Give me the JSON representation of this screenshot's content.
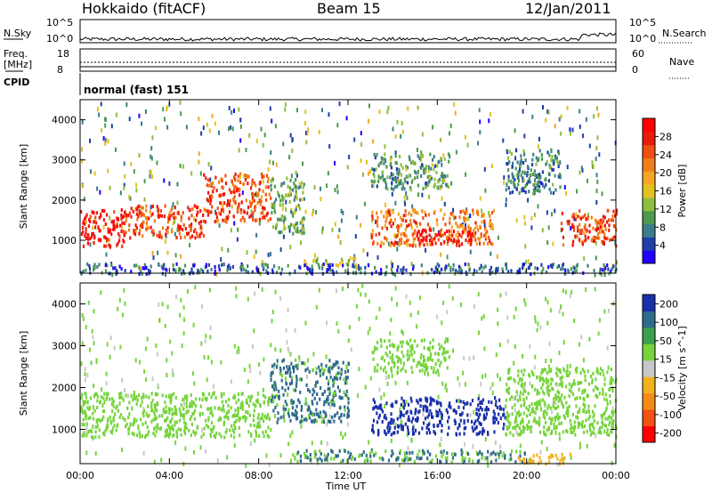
{
  "header": {
    "station": "Hokkaido (fitACF)",
    "beam": "Beam 15",
    "date": "12/Jan/2011"
  },
  "noise_panel": {
    "left_label": "N.Sky",
    "right_label": "N.Search",
    "left_ticks": [
      "10^5",
      "10^0"
    ],
    "right_ticks": [
      "10^5",
      "10^0"
    ]
  },
  "freq_panel": {
    "left_label_1": "Freq.",
    "left_label_2": "[MHz]",
    "left_ticks": [
      "18",
      "8"
    ],
    "right_label": "Nave",
    "right_ticks": [
      "60",
      "0"
    ]
  },
  "cpid_panel": {
    "label": "CPID",
    "mode_text": "normal (fast) 151"
  },
  "x_axis": {
    "label": "Time UT",
    "tick_labels": [
      "00:00",
      "04:00",
      "08:00",
      "12:00",
      "16:00",
      "20:00",
      "00:00"
    ]
  },
  "chart_data": [
    {
      "type": "heatmap",
      "quantity": "Power",
      "ylabel": "Slant Range [km]",
      "y_tick_labels": [
        "1000",
        "2000",
        "3000",
        "4000"
      ],
      "ylim": [
        180,
        4500
      ],
      "x_range_hours": [
        0,
        24
      ],
      "colorbar": {
        "label": "Power [dB]",
        "tick_labels": [
          "4",
          "8",
          "12",
          "16",
          "20",
          "24",
          "28"
        ],
        "colors": [
          "#2200ff",
          "#1f3fa8",
          "#3c7d8c",
          "#4c9a4c",
          "#8cbf3c",
          "#e2c21e",
          "#f5a623",
          "#f07f1a",
          "#f04e12",
          "#e81b0c",
          "#ff0000"
        ]
      },
      "regions": [
        {
          "t0": 0.0,
          "t1": 2.0,
          "r0": 850,
          "r1": 1800,
          "level": 28
        },
        {
          "t0": 2.0,
          "t1": 5.5,
          "r0": 1100,
          "r1": 1900,
          "level": 25
        },
        {
          "t0": 5.5,
          "t1": 8.5,
          "r0": 1500,
          "r1": 2700,
          "level": 24
        },
        {
          "t0": 8.5,
          "t1": 10.0,
          "r0": 1200,
          "r1": 2600,
          "level": 12
        },
        {
          "t0": 10.0,
          "t1": 12.5,
          "r0": 400,
          "r1": 600,
          "level": 14
        },
        {
          "t0": 13.0,
          "t1": 18.5,
          "r0": 900,
          "r1": 1800,
          "level": 22
        },
        {
          "t0": 15.0,
          "t1": 17.5,
          "r0": 900,
          "r1": 1300,
          "level": 29
        },
        {
          "t0": 13.0,
          "t1": 16.5,
          "r0": 2300,
          "r1": 3200,
          "level": 11
        },
        {
          "t0": 19.0,
          "t1": 21.5,
          "r0": 2200,
          "r1": 3300,
          "level": 9
        },
        {
          "t0": 21.5,
          "t1": 24.0,
          "r0": 900,
          "r1": 1800,
          "level": 24
        },
        {
          "t0": 0.0,
          "t1": 24.0,
          "r0": 200,
          "r1": 450,
          "level": 7
        }
      ]
    },
    {
      "type": "heatmap",
      "quantity": "Velocity",
      "ylabel": "Slant Range [km]",
      "y_tick_labels": [
        "1000",
        "2000",
        "3000",
        "4000"
      ],
      "ylim": [
        180,
        4500
      ],
      "x_range_hours": [
        0,
        24
      ],
      "colorbar": {
        "label": "Velocity [m s^-1]",
        "tick_labels": [
          "200",
          "100",
          "50",
          "15",
          "-15",
          "-50",
          "-100",
          "-200"
        ],
        "colors": [
          "#1a2faa",
          "#2f6b8c",
          "#3da04c",
          "#76d43c",
          "#c8c8c8",
          "#f2b21e",
          "#f58a12",
          "#f25212",
          "#ff0000"
        ]
      },
      "regions": [
        {
          "t0": 0.0,
          "t1": 8.5,
          "r0": 850,
          "r1": 1900,
          "level": 0
        },
        {
          "t0": 8.5,
          "t1": 12.0,
          "r0": 1200,
          "r1": 2700,
          "level": 60
        },
        {
          "t0": 13.0,
          "t1": 19.0,
          "r0": 900,
          "r1": 1800,
          "level": 130
        },
        {
          "t0": 13.0,
          "t1": 16.5,
          "r0": 2400,
          "r1": 3200,
          "level": 0
        },
        {
          "t0": 19.0,
          "t1": 24.0,
          "r0": 900,
          "r1": 2500,
          "level": 0
        },
        {
          "t0": 9.5,
          "t1": 20.0,
          "r0": 250,
          "r1": 550,
          "level": 55
        },
        {
          "t0": 19.5,
          "t1": 22.0,
          "r0": 200,
          "r1": 450,
          "level": -70
        }
      ]
    }
  ]
}
